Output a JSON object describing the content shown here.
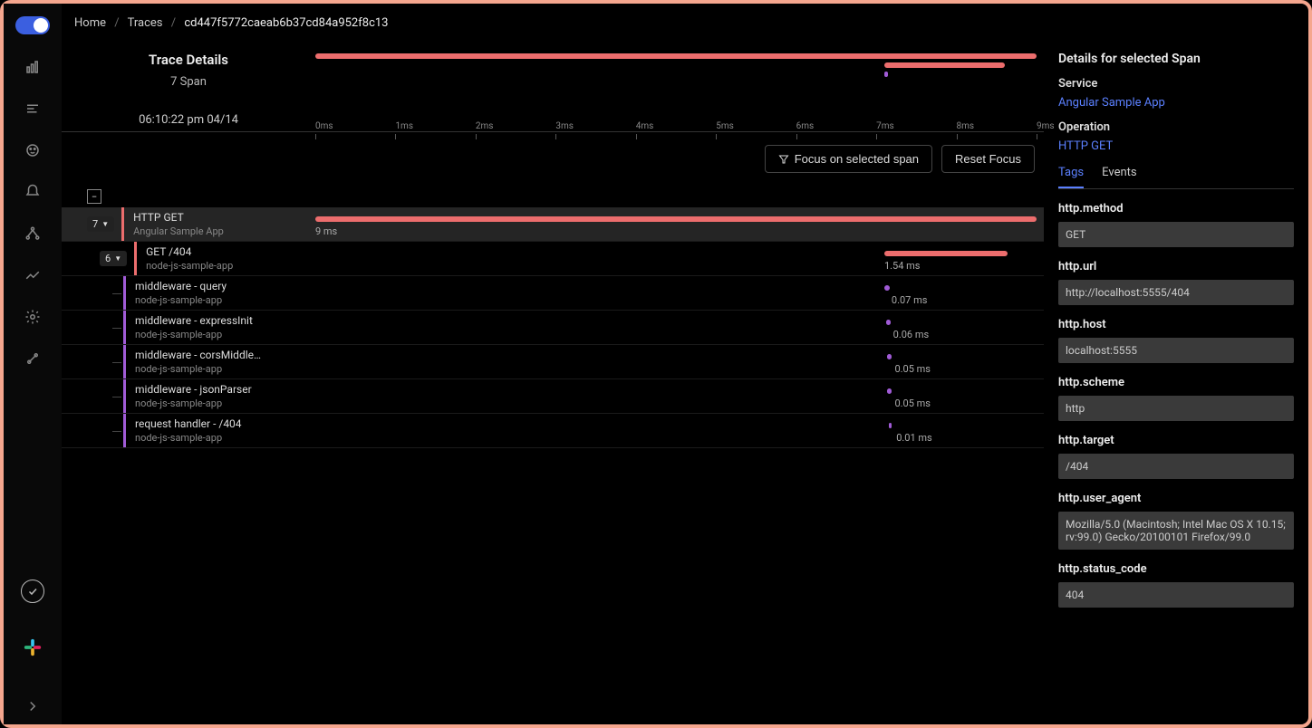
{
  "breadcrumb": {
    "home": "Home",
    "traces": "Traces",
    "id": "cd447f5772caeab6b37cd84a952f8c13"
  },
  "trace": {
    "title": "Trace Details",
    "span_count": "7 Span",
    "timestamp": "06:10:22 pm 04/14"
  },
  "axis": {
    "ticks": [
      "0ms",
      "1ms",
      "2ms",
      "3ms",
      "4ms",
      "5ms",
      "6ms",
      "7ms",
      "8ms",
      "9ms"
    ],
    "max_ms": 9
  },
  "overview_bars": [
    {
      "start_ms": 0.0,
      "end_ms": 9.0,
      "color": "#ec6d6d",
      "y": 0
    },
    {
      "start_ms": 7.1,
      "end_ms": 8.6,
      "color": "#ec6d6d",
      "y": 10
    },
    {
      "start_ms": 7.1,
      "end_ms": 7.15,
      "color": "#a05bd6",
      "y": 20
    }
  ],
  "buttons": {
    "focus": "Focus on selected span",
    "reset": "Reset Focus"
  },
  "spans": [
    {
      "depth": 0,
      "count": "7",
      "name": "HTTP GET",
      "service": "Angular Sample App",
      "accent": "#ec6d6d",
      "bar_color": "#ec6d6d",
      "start_ms": 0.0,
      "end_ms": 9.0,
      "duration": "9 ms",
      "selected": true,
      "expandable": true
    },
    {
      "depth": 1,
      "count": "6",
      "name": "GET /404",
      "service": "node-js-sample-app",
      "accent": "#ec6d6d",
      "bar_color": "#ec6d6d",
      "start_ms": 7.1,
      "end_ms": 8.64,
      "duration": "1.54 ms",
      "expandable": true
    },
    {
      "depth": 2,
      "name": "middleware - query",
      "service": "node-js-sample-app",
      "accent": "#a05bd6",
      "bar_color": "#a05bd6",
      "start_ms": 7.1,
      "end_ms": 7.17,
      "duration": "0.07 ms"
    },
    {
      "depth": 2,
      "name": "middleware - expressInit",
      "service": "node-js-sample-app",
      "accent": "#a05bd6",
      "bar_color": "#a05bd6",
      "start_ms": 7.12,
      "end_ms": 7.18,
      "duration": "0.06 ms"
    },
    {
      "depth": 2,
      "name": "middleware - corsMiddlew…",
      "service": "node-js-sample-app",
      "accent": "#a05bd6",
      "bar_color": "#a05bd6",
      "start_ms": 7.14,
      "end_ms": 7.19,
      "duration": "0.05 ms"
    },
    {
      "depth": 2,
      "name": "middleware - jsonParser",
      "service": "node-js-sample-app",
      "accent": "#a05bd6",
      "bar_color": "#a05bd6",
      "start_ms": 7.14,
      "end_ms": 7.19,
      "duration": "0.05 ms"
    },
    {
      "depth": 2,
      "name": "request handler - /404",
      "service": "node-js-sample-app",
      "accent": "#a05bd6",
      "bar_color": "#a05bd6",
      "start_ms": 7.16,
      "end_ms": 7.17,
      "duration": "0.01 ms"
    }
  ],
  "details": {
    "title": "Details for selected Span",
    "service_label": "Service",
    "service_value": "Angular Sample App",
    "operation_label": "Operation",
    "operation_value": "HTTP GET",
    "tabs": {
      "tags": "Tags",
      "events": "Events"
    },
    "tags": [
      {
        "key": "http.method",
        "value": "GET"
      },
      {
        "key": "http.url",
        "value": "http://localhost:5555/404"
      },
      {
        "key": "http.host",
        "value": "localhost:5555"
      },
      {
        "key": "http.scheme",
        "value": "http"
      },
      {
        "key": "http.target",
        "value": "/404"
      },
      {
        "key": "http.user_agent",
        "value": "Mozilla/5.0 (Macintosh; Intel Mac OS X 10.15; rv:99.0) Gecko/20100101 Firefox/99.0"
      },
      {
        "key": "http.status_code",
        "value": "404"
      }
    ]
  },
  "colors": {
    "red": "#ec6d6d",
    "purple": "#a05bd6",
    "link": "#5b80ff"
  }
}
